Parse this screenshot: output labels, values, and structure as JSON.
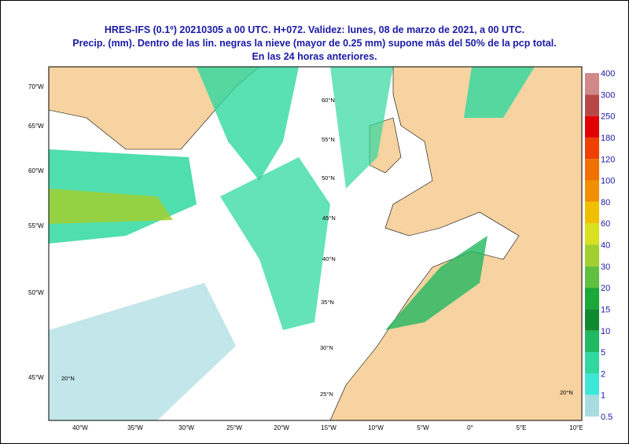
{
  "header": {
    "lines": [
      "HRES-IFS (0.1º) 20210305 a 00 UTC.  H+072. Validez: lunes, 08 de marzo de 2021,  a  00 UTC.",
      "Precip. (mm). Dentro de las lin. negras la nieve (mayor de 0.25 mm) supone más del 50% de la pcp total.",
      "En las 24 horas anteriores."
    ]
  },
  "colorbar": {
    "labels": [
      "0.5",
      "1",
      "2",
      "5",
      "10",
      "15",
      "20",
      "30",
      "40",
      "60",
      "80",
      "100",
      "120",
      "180",
      "250",
      "300",
      "400"
    ],
    "colors": [
      "#a8dce0",
      "#3ee8d8",
      "#30d8a0",
      "#20b860",
      "#108a30",
      "#1aa838",
      "#60c040",
      "#a0d030",
      "#d8e020",
      "#f0c000",
      "#f09000",
      "#f07000",
      "#f04000",
      "#e00000",
      "#b84848",
      "#d08888"
    ]
  },
  "map": {
    "left_labels": [
      "70°W",
      "65°W",
      "60°W",
      "55°W",
      "50°W",
      "45°W"
    ],
    "bottom_labels": [
      "40°W",
      "35°W",
      "30°W",
      "25°W",
      "20°W",
      "15°W",
      "10°W",
      "5°W",
      "0°",
      "5°E",
      "10°E"
    ],
    "grid_labels": [
      "60°N",
      "55°N",
      "50°N",
      "45°N",
      "40°N",
      "35°N",
      "30°N",
      "25°N",
      "20°N",
      "20°N"
    ]
  }
}
